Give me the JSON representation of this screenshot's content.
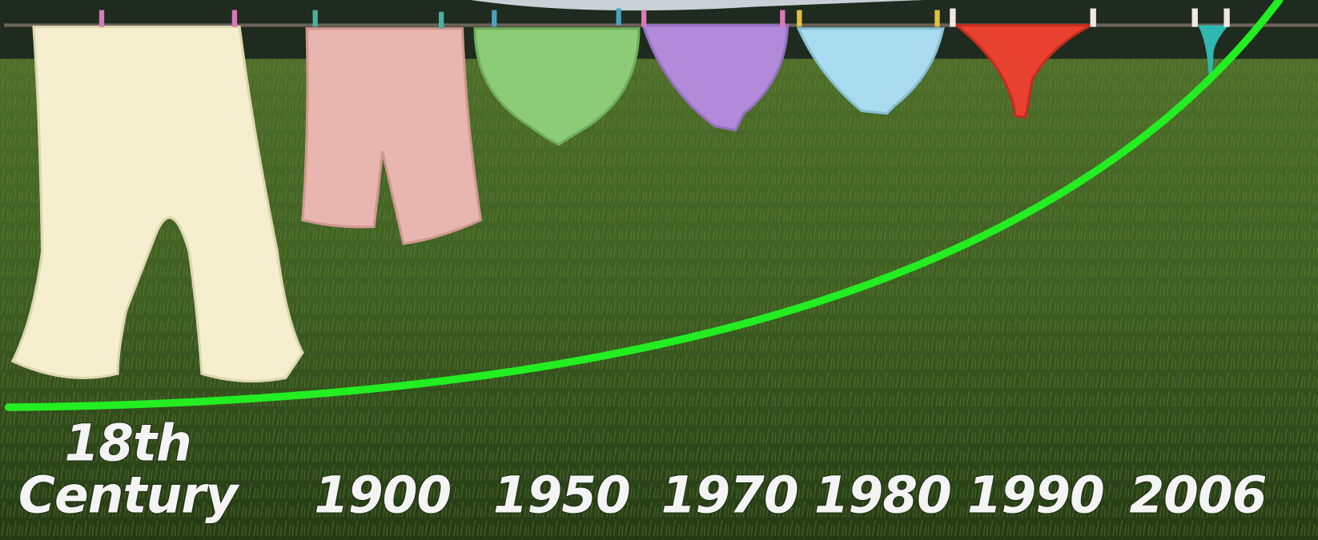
{
  "labels": [
    {
      "lines": [
        "18th",
        "Century"
      ]
    },
    {
      "lines": [
        "1900"
      ]
    },
    {
      "lines": [
        "1950"
      ]
    },
    {
      "lines": [
        "1970"
      ]
    },
    {
      "lines": [
        "1980"
      ]
    },
    {
      "lines": [
        "1990"
      ]
    },
    {
      "lines": [
        "2006"
      ]
    }
  ]
}
